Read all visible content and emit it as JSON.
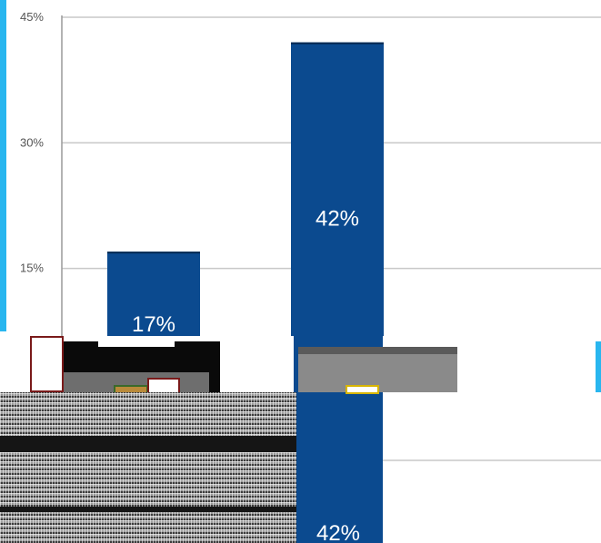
{
  "chart_data": {
    "type": "bar",
    "categories": [
      "",
      ""
    ],
    "values": [
      17,
      42
    ],
    "value_labels": [
      "17%",
      "42%"
    ],
    "ylim": [
      0,
      45
    ],
    "yticks": [
      0,
      15,
      30,
      45
    ],
    "ytick_labels": [
      "",
      "15%",
      "30%",
      "45%"
    ],
    "grid": true,
    "bar_color": "#0b4a8f",
    "accent_color": "#29b6ef"
  },
  "duplicate_fragment": {
    "bar_label": "42%"
  }
}
